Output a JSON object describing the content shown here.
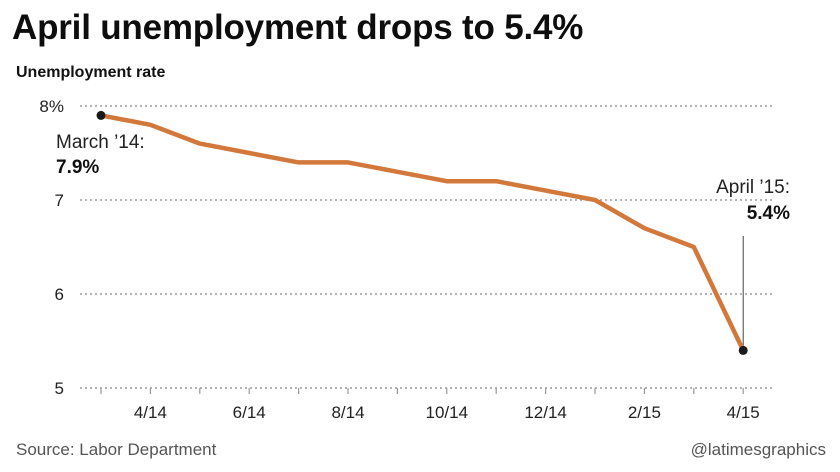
{
  "title": "April unemployment drops to 5.4%",
  "source": "Source: Labor Department",
  "credit": "@latimesgraphics",
  "colors": {
    "line": "#d2783b",
    "grid": "#9a9a9a",
    "marker": "#1a1a1a"
  },
  "chart_data": {
    "type": "line",
    "title": "April unemployment drops to 5.4%",
    "xlabel": "",
    "ylabel": "Unemployment rate",
    "x": [
      "3/14",
      "4/14",
      "5/14",
      "6/14",
      "7/14",
      "8/14",
      "9/14",
      "10/14",
      "11/14",
      "12/14",
      "1/15",
      "2/15",
      "3/15",
      "4/15"
    ],
    "tick_labels": [
      "4/14",
      "6/14",
      "8/14",
      "10/14",
      "12/14",
      "2/15",
      "4/15"
    ],
    "y_ticks": [
      "8%",
      "7",
      "6",
      "5"
    ],
    "ylim": [
      5,
      8
    ],
    "grid": true,
    "series": [
      {
        "values": [
          7.9,
          7.8,
          7.6,
          7.5,
          7.4,
          7.4,
          7.3,
          7.2,
          7.2,
          7.1,
          7.0,
          6.7,
          6.5,
          5.4
        ]
      }
    ],
    "annotations": [
      {
        "label": "March ’14:",
        "value": "7.9%"
      },
      {
        "label": "April ’15:",
        "value": "5.4%"
      }
    ]
  }
}
